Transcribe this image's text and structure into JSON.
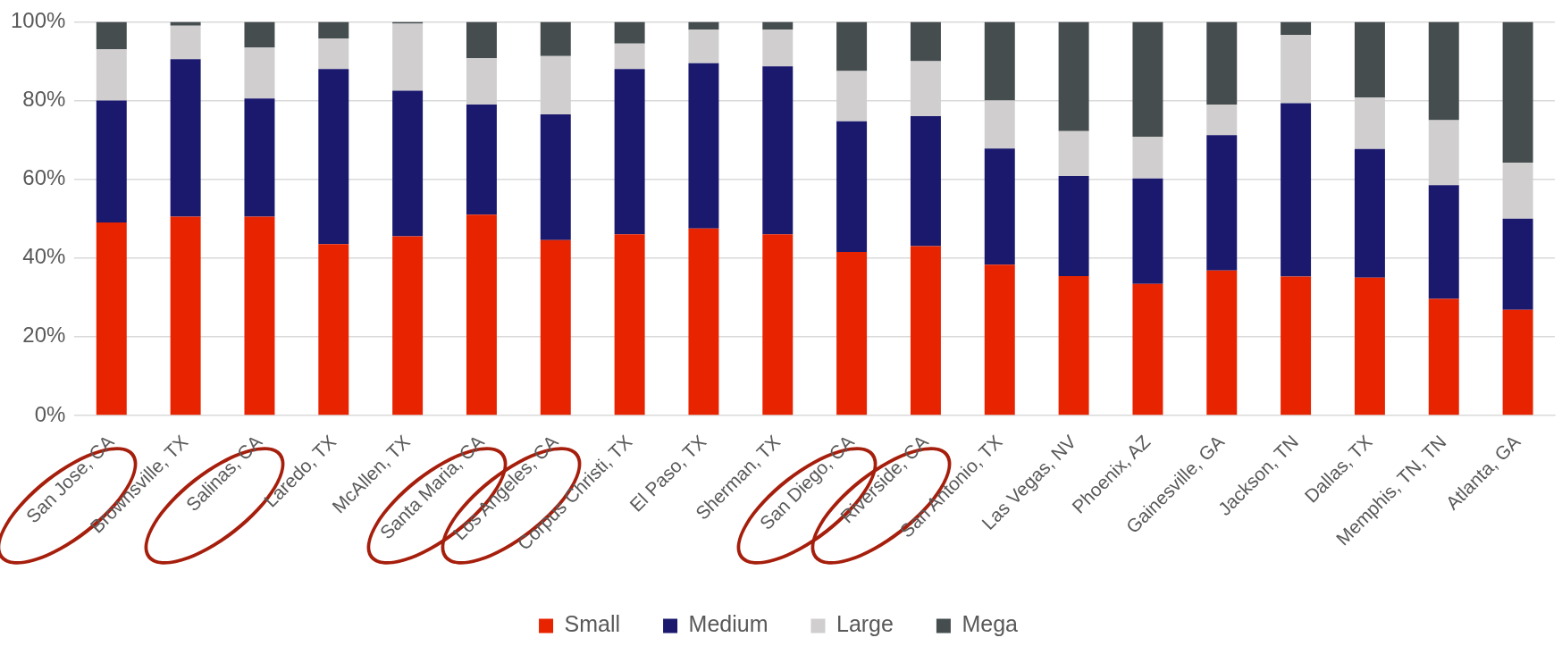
{
  "chart_data": {
    "type": "bar",
    "stacked": true,
    "categories": [
      "San Jose, CA",
      "Brownsville, TX",
      "Salinas, CA",
      "Laredo, TX",
      "McAllen, TX",
      "Santa Maria, CA",
      "Los Angeles, CA",
      "Corpus Christi, TX",
      "El Paso, TX",
      "Sherman, TX",
      "San Diego, CA",
      "Riverside, CA",
      "San Antonio, TX",
      "Las Vegas, NV",
      "Phoenix, AZ",
      "Gainesville, GA",
      "Jackson, TN",
      "Dallas, TX",
      "Memphis, TN, TN",
      "Atlanta, GA"
    ],
    "series": [
      {
        "name": "Small",
        "color": "#e82300",
        "values": [
          49,
          50.5,
          50.5,
          43.5,
          45.5,
          51,
          44.5,
          46,
          47.5,
          46,
          41.5,
          43,
          38.3,
          35.4,
          33.4,
          36.8,
          35.3,
          35,
          29.6,
          26.8
        ]
      },
      {
        "name": "Medium",
        "color": "#1b196e",
        "values": [
          31,
          40,
          30,
          44.5,
          37,
          28,
          32,
          42,
          42,
          42.7,
          33.2,
          33,
          29.5,
          25.4,
          26.8,
          34.4,
          44,
          32.7,
          28.9,
          23.2
        ]
      },
      {
        "name": "Large",
        "color": "#d0cecf",
        "values": [
          13,
          8.5,
          13,
          7.8,
          17,
          11.7,
          14.8,
          6.5,
          8.5,
          9.3,
          12.8,
          14,
          12.2,
          11.4,
          10.6,
          7.8,
          17.4,
          13.1,
          16.5,
          14.2
        ]
      },
      {
        "name": "Mega",
        "color": "#454d4e",
        "values": [
          7,
          1,
          6.5,
          4.2,
          0.5,
          9.3,
          8.7,
          5.5,
          2,
          2,
          12.5,
          10,
          20,
          27.8,
          29.2,
          21,
          3.3,
          19.2,
          25,
          35.8
        ]
      }
    ],
    "ylim": [
      0,
      100
    ],
    "yticks": [
      {
        "value": 0,
        "label": "0%"
      },
      {
        "value": 20,
        "label": "20%"
      },
      {
        "value": 40,
        "label": "40%"
      },
      {
        "value": 60,
        "label": "60%"
      },
      {
        "value": 80,
        "label": "80%"
      },
      {
        "value": 100,
        "label": "100%"
      }
    ],
    "grid": "y",
    "legend": "bottom"
  }
}
